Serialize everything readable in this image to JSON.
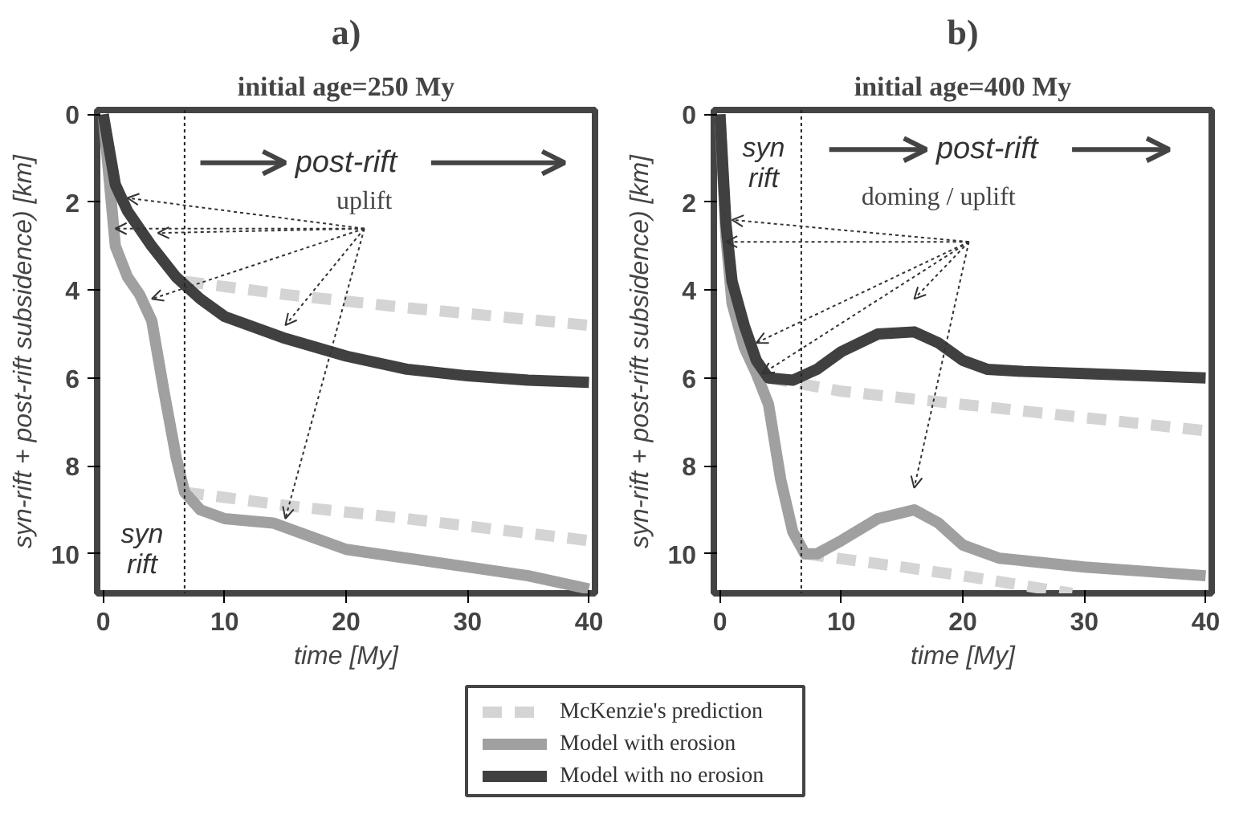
{
  "chart_data": [
    {
      "type": "line",
      "title": "a)",
      "subtitle": "initial age=250 My",
      "xlabel": "time [My]",
      "ylabel": "syn-rift + post-rift subsidence) [km]",
      "xlim": [
        -0.5,
        40.5
      ],
      "ylim": [
        10.9,
        -0.1
      ],
      "xticks": [
        0,
        10,
        20,
        30,
        40
      ],
      "yticks": [
        0,
        2,
        4,
        6,
        8,
        10
      ],
      "grid": false,
      "legend": "bottom",
      "line_style": "solid",
      "marker": "none",
      "ref_lines": [
        {
          "axis": "x",
          "value": 6.7,
          "line_style": "dotted",
          "color": "#222222"
        }
      ],
      "annotations": [
        "post-rift",
        "syn\nrift",
        "uplift"
      ],
      "series": [
        {
          "name": "McKenzie's prediction",
          "color": "#d4d4d4",
          "line_style": "dashed",
          "x": [
            6.7,
            15,
            25,
            40
          ],
          "values": [
            3.8,
            4.1,
            4.4,
            4.8
          ]
        },
        {
          "color": "#d4d4d4",
          "line_style": "dashed",
          "x": [
            6.7,
            15,
            25,
            40
          ],
          "values": [
            8.6,
            8.9,
            9.2,
            9.7
          ]
        },
        {
          "name": "Model with erosion",
          "color": "#a0a0a0",
          "x": [
            0,
            0.5,
            1,
            2,
            3,
            4,
            5,
            6,
            6.7,
            8,
            10,
            14,
            17,
            20,
            25,
            30,
            35,
            40
          ],
          "values": [
            0,
            1.5,
            3.0,
            3.7,
            4.1,
            4.7,
            6.3,
            7.8,
            8.6,
            9.0,
            9.2,
            9.3,
            9.6,
            9.9,
            10.1,
            10.3,
            10.5,
            10.8
          ]
        },
        {
          "name": "Model with no erosion",
          "color": "#404040",
          "x": [
            0,
            0.5,
            1,
            2,
            4,
            6,
            8,
            10,
            15,
            20,
            25,
            30,
            35,
            40
          ],
          "values": [
            0,
            0.8,
            1.6,
            2.2,
            3.0,
            3.7,
            4.2,
            4.6,
            5.1,
            5.5,
            5.8,
            5.95,
            6.05,
            6.1
          ]
        }
      ]
    },
    {
      "type": "line",
      "title": "b)",
      "subtitle": "initial age=400 My",
      "xlabel": "time [My]",
      "ylabel": "syn-rift + post-rift subsidence) [km]",
      "xlim": [
        -0.5,
        40.5
      ],
      "ylim": [
        10.9,
        -0.1
      ],
      "xticks": [
        0,
        10,
        20,
        30,
        40
      ],
      "yticks": [
        0,
        2,
        4,
        6,
        8,
        10
      ],
      "grid": false,
      "line_style": "solid",
      "marker": "none",
      "ref_lines": [
        {
          "axis": "x",
          "value": 6.7,
          "line_style": "dotted",
          "color": "#222222"
        }
      ],
      "annotations": [
        "post-rift",
        "syn\nrift",
        "doming / uplift"
      ],
      "series": [
        {
          "color": "#d4d4d4",
          "line_style": "dashed",
          "x": [
            4,
            10,
            20,
            30,
            40
          ],
          "values": [
            6.0,
            6.3,
            6.6,
            6.9,
            7.2
          ]
        },
        {
          "color": "#d4d4d4",
          "line_style": "dashed",
          "x": [
            7,
            15,
            20,
            29
          ],
          "values": [
            10.0,
            10.3,
            10.5,
            10.9
          ]
        },
        {
          "color": "#a0a0a0",
          "x": [
            0,
            0.5,
            1,
            2,
            3,
            4,
            5,
            6,
            7,
            8,
            10,
            13,
            16,
            18,
            20,
            23,
            30,
            35,
            40
          ],
          "values": [
            0,
            2.8,
            4.3,
            5.3,
            5.9,
            6.6,
            8.3,
            9.5,
            10.0,
            10.0,
            9.7,
            9.2,
            9.0,
            9.3,
            9.8,
            10.1,
            10.3,
            10.4,
            10.5
          ]
        },
        {
          "color": "#404040",
          "x": [
            0,
            0.5,
            1,
            2,
            3,
            4,
            6,
            8,
            10,
            13,
            16,
            18,
            20,
            22,
            25,
            30,
            35,
            40
          ],
          "values": [
            0,
            2.5,
            3.8,
            4.8,
            5.6,
            6.0,
            6.05,
            5.8,
            5.4,
            5.0,
            4.95,
            5.2,
            5.6,
            5.8,
            5.85,
            5.9,
            5.95,
            6.0
          ]
        }
      ]
    }
  ]
}
